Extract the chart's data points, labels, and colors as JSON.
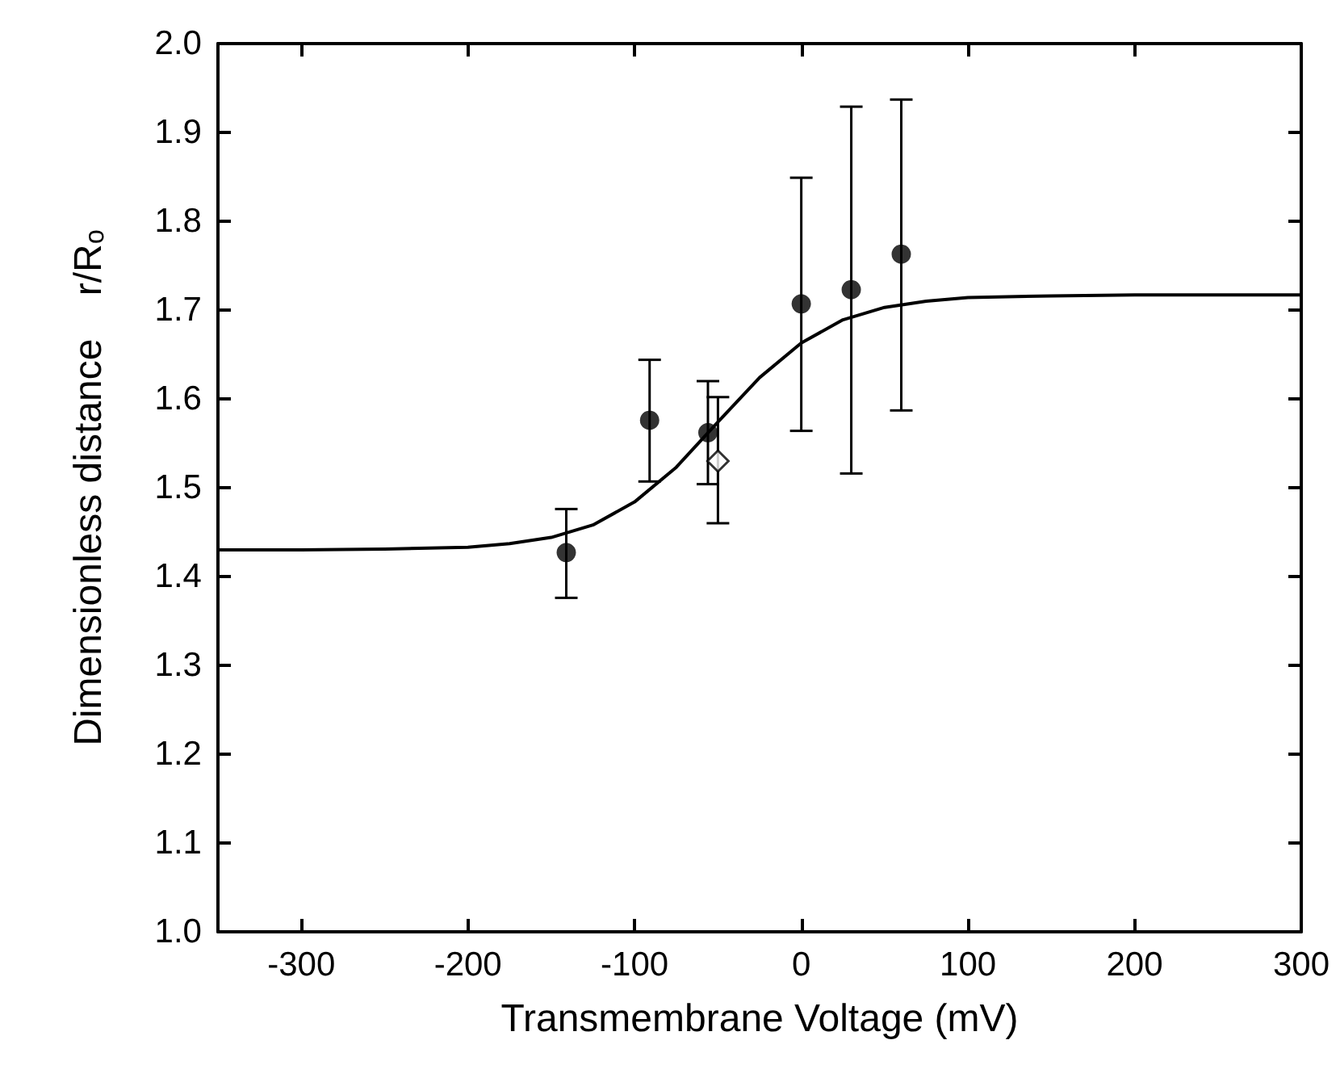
{
  "chart_data": {
    "type": "scatter",
    "xlabel": "Transmembrane Voltage (mV)",
    "ylabel": "Dimensionless distance    r/Rₒ",
    "xlim": [
      -350,
      300
    ],
    "xticks": [
      -300,
      -200,
      -100,
      0,
      100,
      200,
      300
    ],
    "ylim": [
      1.0,
      2.0
    ],
    "yticks": [
      {
        "value": 1.0,
        "label": "1.0"
      },
      1.1,
      1.2,
      1.3,
      1.4,
      1.5,
      1.6,
      1.7,
      1.8,
      1.9,
      {
        "value": 2.0,
        "label": "2.0"
      }
    ],
    "grid": false,
    "series": [
      {
        "marker": "circle",
        "color": "#000000",
        "x": [
          -141,
          -91,
          -56,
          0,
          30,
          60
        ],
        "values": [
          1.427,
          1.576,
          1.562,
          1.707,
          1.723,
          1.763
        ],
        "errors": [
          [
            1.376,
            1.476
          ],
          [
            1.507,
            1.644
          ],
          [
            1.504,
            1.62
          ],
          [
            1.564,
            1.849
          ],
          [
            1.516,
            1.929
          ],
          [
            1.587,
            1.937
          ]
        ]
      },
      {
        "marker": "diamond",
        "color": "#000000",
        "x": [
          -50
        ],
        "values": [
          1.53
        ],
        "errors": [
          [
            1.46,
            1.602
          ]
        ]
      },
      {
        "type": "line",
        "marker": "none",
        "line_style": "solid",
        "color": "#000000",
        "x": [
          -350,
          -300,
          -250,
          -200,
          -175,
          -150,
          -125,
          -100,
          -75,
          -50,
          -25,
          0,
          25,
          50,
          75,
          100,
          150,
          200,
          250,
          300
        ],
        "values": [
          1.43,
          1.43,
          1.431,
          1.433,
          1.437,
          1.444,
          1.458,
          1.484,
          1.523,
          1.574,
          1.624,
          1.663,
          1.689,
          1.703,
          1.71,
          1.714,
          1.716,
          1.717,
          1.717,
          1.717
        ]
      }
    ]
  }
}
